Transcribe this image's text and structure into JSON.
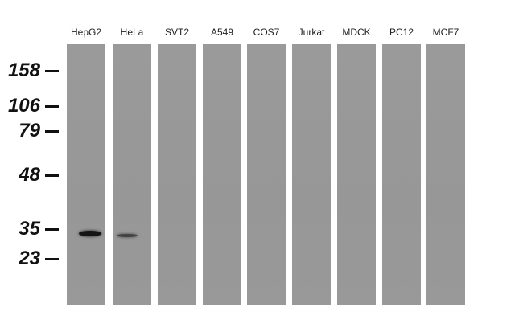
{
  "lanes": [
    "HepG2",
    "HeLa",
    "SVT2",
    "A549",
    "COS7",
    "Jurkat",
    "MDCK",
    "PC12",
    "MCF7"
  ],
  "markers": [
    "158",
    "106",
    "79",
    "48",
    "35",
    "23"
  ],
  "bands": [
    {
      "lane": "HepG2",
      "intensity": "strong",
      "marker_near": "35"
    },
    {
      "lane": "HeLa",
      "intensity": "weak",
      "marker_near": "35"
    }
  ],
  "colors": {
    "lane": "#989898",
    "band": "#1a1a1a",
    "text": "#111111"
  }
}
